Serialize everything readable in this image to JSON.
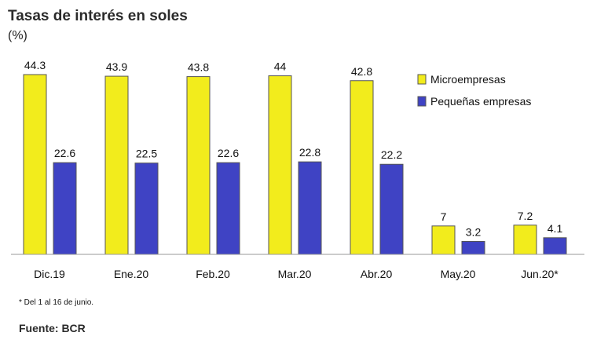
{
  "chart_data": {
    "type": "bar",
    "title": "Tasas de interés en soles",
    "unit_label": "(%)",
    "categories": [
      "Dic.19",
      "Ene.20",
      "Feb.20",
      "Mar.20",
      "Abr.20",
      "May.20",
      "Jun.20*"
    ],
    "series": [
      {
        "name": "Microempresas",
        "values": [
          44.3,
          43.9,
          43.8,
          44,
          42.8,
          7,
          7.2
        ],
        "color": "#f2ec1c",
        "value_labels": [
          "44.3",
          "43.9",
          "43.8",
          "44",
          "42.8",
          "7",
          "7.2"
        ]
      },
      {
        "name": "Pequeñas empresas",
        "values": [
          22.6,
          22.5,
          22.6,
          22.8,
          22.2,
          3.2,
          4.1
        ],
        "color": "#3f43c4",
        "value_labels": [
          "22.6",
          "22.5",
          "22.6",
          "22.8",
          "22.2",
          "3.2",
          "4.1"
        ]
      }
    ],
    "ylim": [
      0,
      44.3
    ],
    "grid": false,
    "legend_position": "top-right",
    "footnote": "* Del 1 al 16 de junio.",
    "source": "Fuente: BCR"
  }
}
